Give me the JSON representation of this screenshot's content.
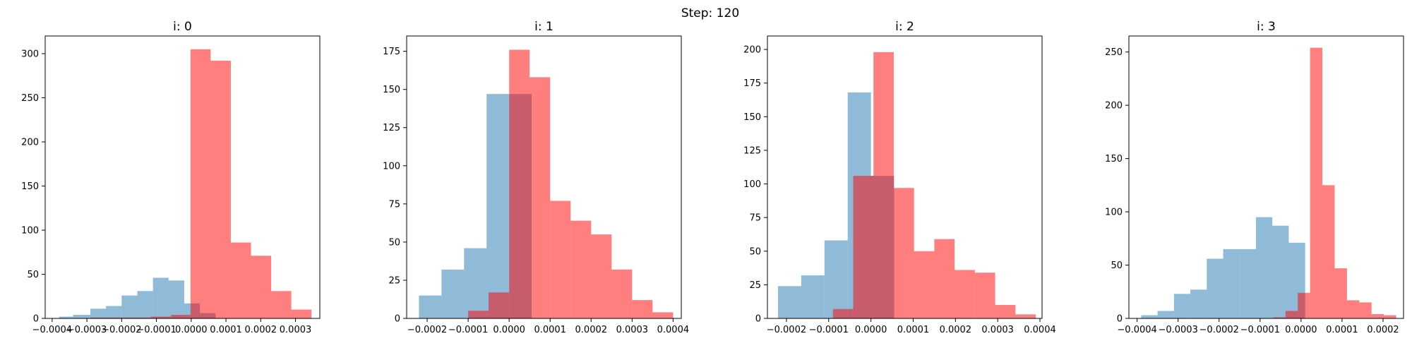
{
  "figure": {
    "suptitle": "Step: 120"
  },
  "chart_data": [
    {
      "type": "bar",
      "title": "i: 0",
      "xlim": [
        -0.00042,
        0.00037
      ],
      "ylim": [
        0,
        320
      ],
      "xticks": [
        -0.0004,
        -0.0003,
        -0.0002,
        -0.0001,
        0.0,
        0.0001,
        0.0002,
        0.0003
      ],
      "xtick_labels": [
        "−0.0004",
        "−0.0003",
        "−0.0002",
        "−0.0001",
        "0.0000",
        "0.0001",
        "0.0002",
        "0.0003"
      ],
      "yticks": [
        0,
        50,
        100,
        150,
        200,
        250,
        300
      ],
      "ytick_labels": [
        "0",
        "50",
        "100",
        "150",
        "200",
        "250",
        "300"
      ],
      "series": [
        {
          "color": "#1f77b4",
          "opacity": 0.5,
          "edges": [
            -0.00038,
            -0.00034,
            -0.00029,
            -0.000245,
            -0.0002,
            -0.000155,
            -0.00011,
            -6.5e-05,
            -2e-05,
            2.5e-05,
            7e-05
          ],
          "counts": [
            2,
            4,
            11,
            14,
            26,
            31,
            46,
            43,
            17,
            6
          ]
        },
        {
          "color": "#ff0000",
          "opacity": 0.5,
          "edges": [
            -0.00029,
            -0.00023,
            -0.000174,
            -0.000116,
            -5.8e-05,
            -2e-06,
            5.6e-05,
            0.000114,
            0.000172,
            0.00023,
            0.000288,
            0.000346
          ],
          "counts": [
            1,
            1,
            1,
            2,
            4,
            305,
            292,
            86,
            71,
            31,
            10
          ]
        }
      ]
    },
    {
      "type": "bar",
      "title": "i: 1",
      "xlim": [
        -0.00025,
        0.00042
      ],
      "ylim": [
        0,
        185
      ],
      "xticks": [
        -0.0002,
        -0.0001,
        0.0,
        0.0001,
        0.0002,
        0.0003,
        0.0004
      ],
      "xtick_labels": [
        "−0.0002",
        "−0.0001",
        "0.0000",
        "0.0001",
        "0.0002",
        "0.0003",
        "0.0004"
      ],
      "yticks": [
        0,
        25,
        50,
        75,
        100,
        125,
        150,
        175
      ],
      "ytick_labels": [
        "0",
        "25",
        "50",
        "75",
        "100",
        "125",
        "150",
        "175"
      ],
      "series": [
        {
          "color": "#1f77b4",
          "opacity": 0.5,
          "edges": [
            -0.00022,
            -0.000165,
            -0.00011,
            -5.5e-05,
            0.0,
            5.5e-05
          ],
          "counts": [
            15,
            32,
            46,
            147,
            147
          ]
        },
        {
          "color": "#ff0000",
          "opacity": 0.5,
          "edges": [
            -0.0001,
            -5e-05,
            0.0,
            5e-05,
            0.0001,
            0.00015,
            0.0002,
            0.00025,
            0.0003,
            0.00035,
            0.0004
          ],
          "counts": [
            5,
            17,
            176,
            158,
            77,
            64,
            55,
            32,
            12,
            4
          ]
        }
      ]
    },
    {
      "type": "bar",
      "title": "i: 2",
      "xlim": [
        -0.000245,
        0.000405
      ],
      "ylim": [
        0,
        210
      ],
      "xticks": [
        -0.0002,
        -0.0001,
        0.0,
        0.0001,
        0.0002,
        0.0003,
        0.0004
      ],
      "xtick_labels": [
        "−0.0002",
        "−0.0001",
        "0.0000",
        "0.0001",
        "0.0002",
        "0.0003",
        "0.0004"
      ],
      "yticks": [
        0,
        25,
        50,
        75,
        100,
        125,
        150,
        175,
        200
      ],
      "ytick_labels": [
        "0",
        "25",
        "50",
        "75",
        "100",
        "125",
        "150",
        "175",
        "200"
      ],
      "series": [
        {
          "color": "#1f77b4",
          "opacity": 0.5,
          "edges": [
            -0.00022,
            -0.000165,
            -0.00011,
            -5.5e-05,
            0.0,
            5.5e-05
          ],
          "counts": [
            24,
            32,
            58,
            168,
            106
          ]
        },
        {
          "color": "#ff0000",
          "opacity": 0.5,
          "edges": [
            -9e-05,
            -4.2e-05,
            6e-06,
            5.4e-05,
            0.000102,
            0.00015,
            0.000198,
            0.000246,
            0.000294,
            0.000342,
            0.00039
          ],
          "counts": [
            7,
            106,
            198,
            97,
            50,
            59,
            36,
            34,
            10,
            3
          ]
        }
      ]
    },
    {
      "type": "bar",
      "title": "i: 3",
      "xlim": [
        -0.00042,
        0.00025
      ],
      "ylim": [
        0,
        265
      ],
      "xticks": [
        -0.0004,
        -0.0003,
        -0.0002,
        -0.0001,
        0.0,
        0.0001,
        0.0002
      ],
      "xtick_labels": [
        "−0.0004",
        "−0.0003",
        "−0.0002",
        "−0.0001",
        "0.0000",
        "0.0001",
        "0.0002"
      ],
      "yticks": [
        0,
        50,
        100,
        150,
        200,
        250
      ],
      "ytick_labels": [
        "0",
        "50",
        "100",
        "150",
        "200",
        "250"
      ],
      "series": [
        {
          "color": "#1f77b4",
          "opacity": 0.5,
          "edges": [
            -0.00039,
            -0.00035,
            -0.00031,
            -0.00027,
            -0.00023,
            -0.00019,
            -0.00015,
            -0.00011,
            -7e-05,
            -3e-05,
            1e-05
          ],
          "counts": [
            3,
            7,
            23,
            27,
            56,
            65,
            65,
            95,
            87,
            71
          ]
        },
        {
          "color": "#ff0000",
          "opacity": 0.5,
          "edges": [
            -6.8e-05,
            -3.8e-05,
            -8e-06,
            2.2e-05,
            5.2e-05,
            8.2e-05,
            0.000112,
            0.000142,
            0.000172,
            0.000202,
            0.000232
          ],
          "counts": [
            1,
            7,
            24,
            254,
            125,
            47,
            17,
            15,
            4,
            3
          ]
        }
      ]
    }
  ]
}
